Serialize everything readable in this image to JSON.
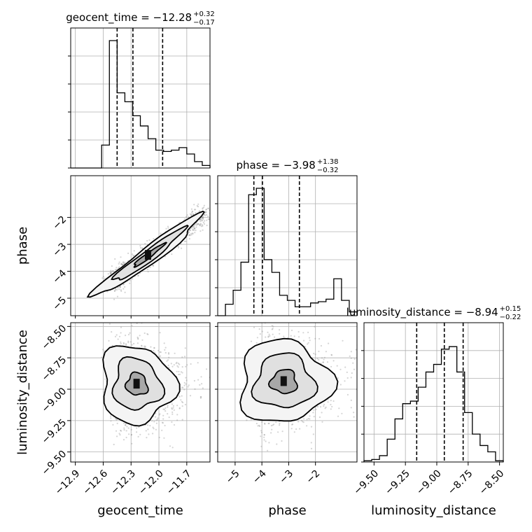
{
  "chart_data": {
    "type": "corner",
    "parameters": [
      {
        "key": "geocent_time",
        "label": "geocent_time",
        "title_main": "geocent_time = −12.28",
        "title_sup": "+0.32",
        "title_sub": "−0.17",
        "range": [
          -12.95,
          -11.45
        ],
        "ticks": [
          -12.9,
          -12.6,
          -12.3,
          -12.0,
          -11.7
        ],
        "tick_labels": [
          "−12.9",
          "−12.6",
          "−12.3",
          "−12.0",
          "−11.7"
        ],
        "quantiles": [
          -12.45,
          -12.28,
          -11.96
        ],
        "hist": [
          0,
          0,
          0,
          0,
          0.18,
          1.0,
          0.59,
          0.52,
          0.41,
          0.33,
          0.23,
          0.14,
          0.13,
          0.14,
          0.16,
          0.11,
          0.05,
          0.02
        ]
      },
      {
        "key": "phase",
        "label": "phase",
        "title_main": "phase = −3.98",
        "title_sup": "+1.38",
        "title_sub": "−0.32",
        "range": [
          -5.65,
          -0.45
        ],
        "ticks": [
          -5,
          -4,
          -3,
          -2
        ],
        "tick_labels": [
          "−5",
          "−4",
          "−3",
          "−2"
        ],
        "quantiles": [
          -4.3,
          -3.98,
          -2.6
        ],
        "hist": [
          0,
          0.09,
          0.2,
          0.42,
          0.95,
          1.0,
          0.44,
          0.34,
          0.16,
          0.12,
          0.07,
          0.07,
          0.1,
          0.11,
          0.13,
          0.29,
          0.12,
          0.03
        ]
      },
      {
        "key": "luminosity_distance",
        "label": "luminosity_distance",
        "title_main": "luminosity_distance = −8.94",
        "title_sup": "+0.15",
        "title_sub": "−0.22",
        "range": [
          -9.58,
          -8.47
        ],
        "ticks": [
          -9.5,
          -9.25,
          -9.0,
          -8.75,
          -8.5
        ],
        "tick_labels": [
          "−9.50",
          "−9.25",
          "−9.00",
          "−8.75",
          "−8.50"
        ],
        "quantiles": [
          -9.16,
          -8.94,
          -8.79
        ],
        "hist": [
          0.01,
          0.02,
          0.05,
          0.18,
          0.34,
          0.46,
          0.48,
          0.59,
          0.71,
          0.77,
          0.89,
          0.91,
          0.71,
          0.39,
          0.22,
          0.13,
          0.08,
          0.01
        ]
      }
    ],
    "pairs": [
      {
        "x": "geocent_time",
        "y": "phase"
      },
      {
        "x": "geocent_time",
        "y": "luminosity_distance"
      },
      {
        "x": "phase",
        "y": "luminosity_distance"
      }
    ],
    "grid": true,
    "contour_levels": 3
  }
}
